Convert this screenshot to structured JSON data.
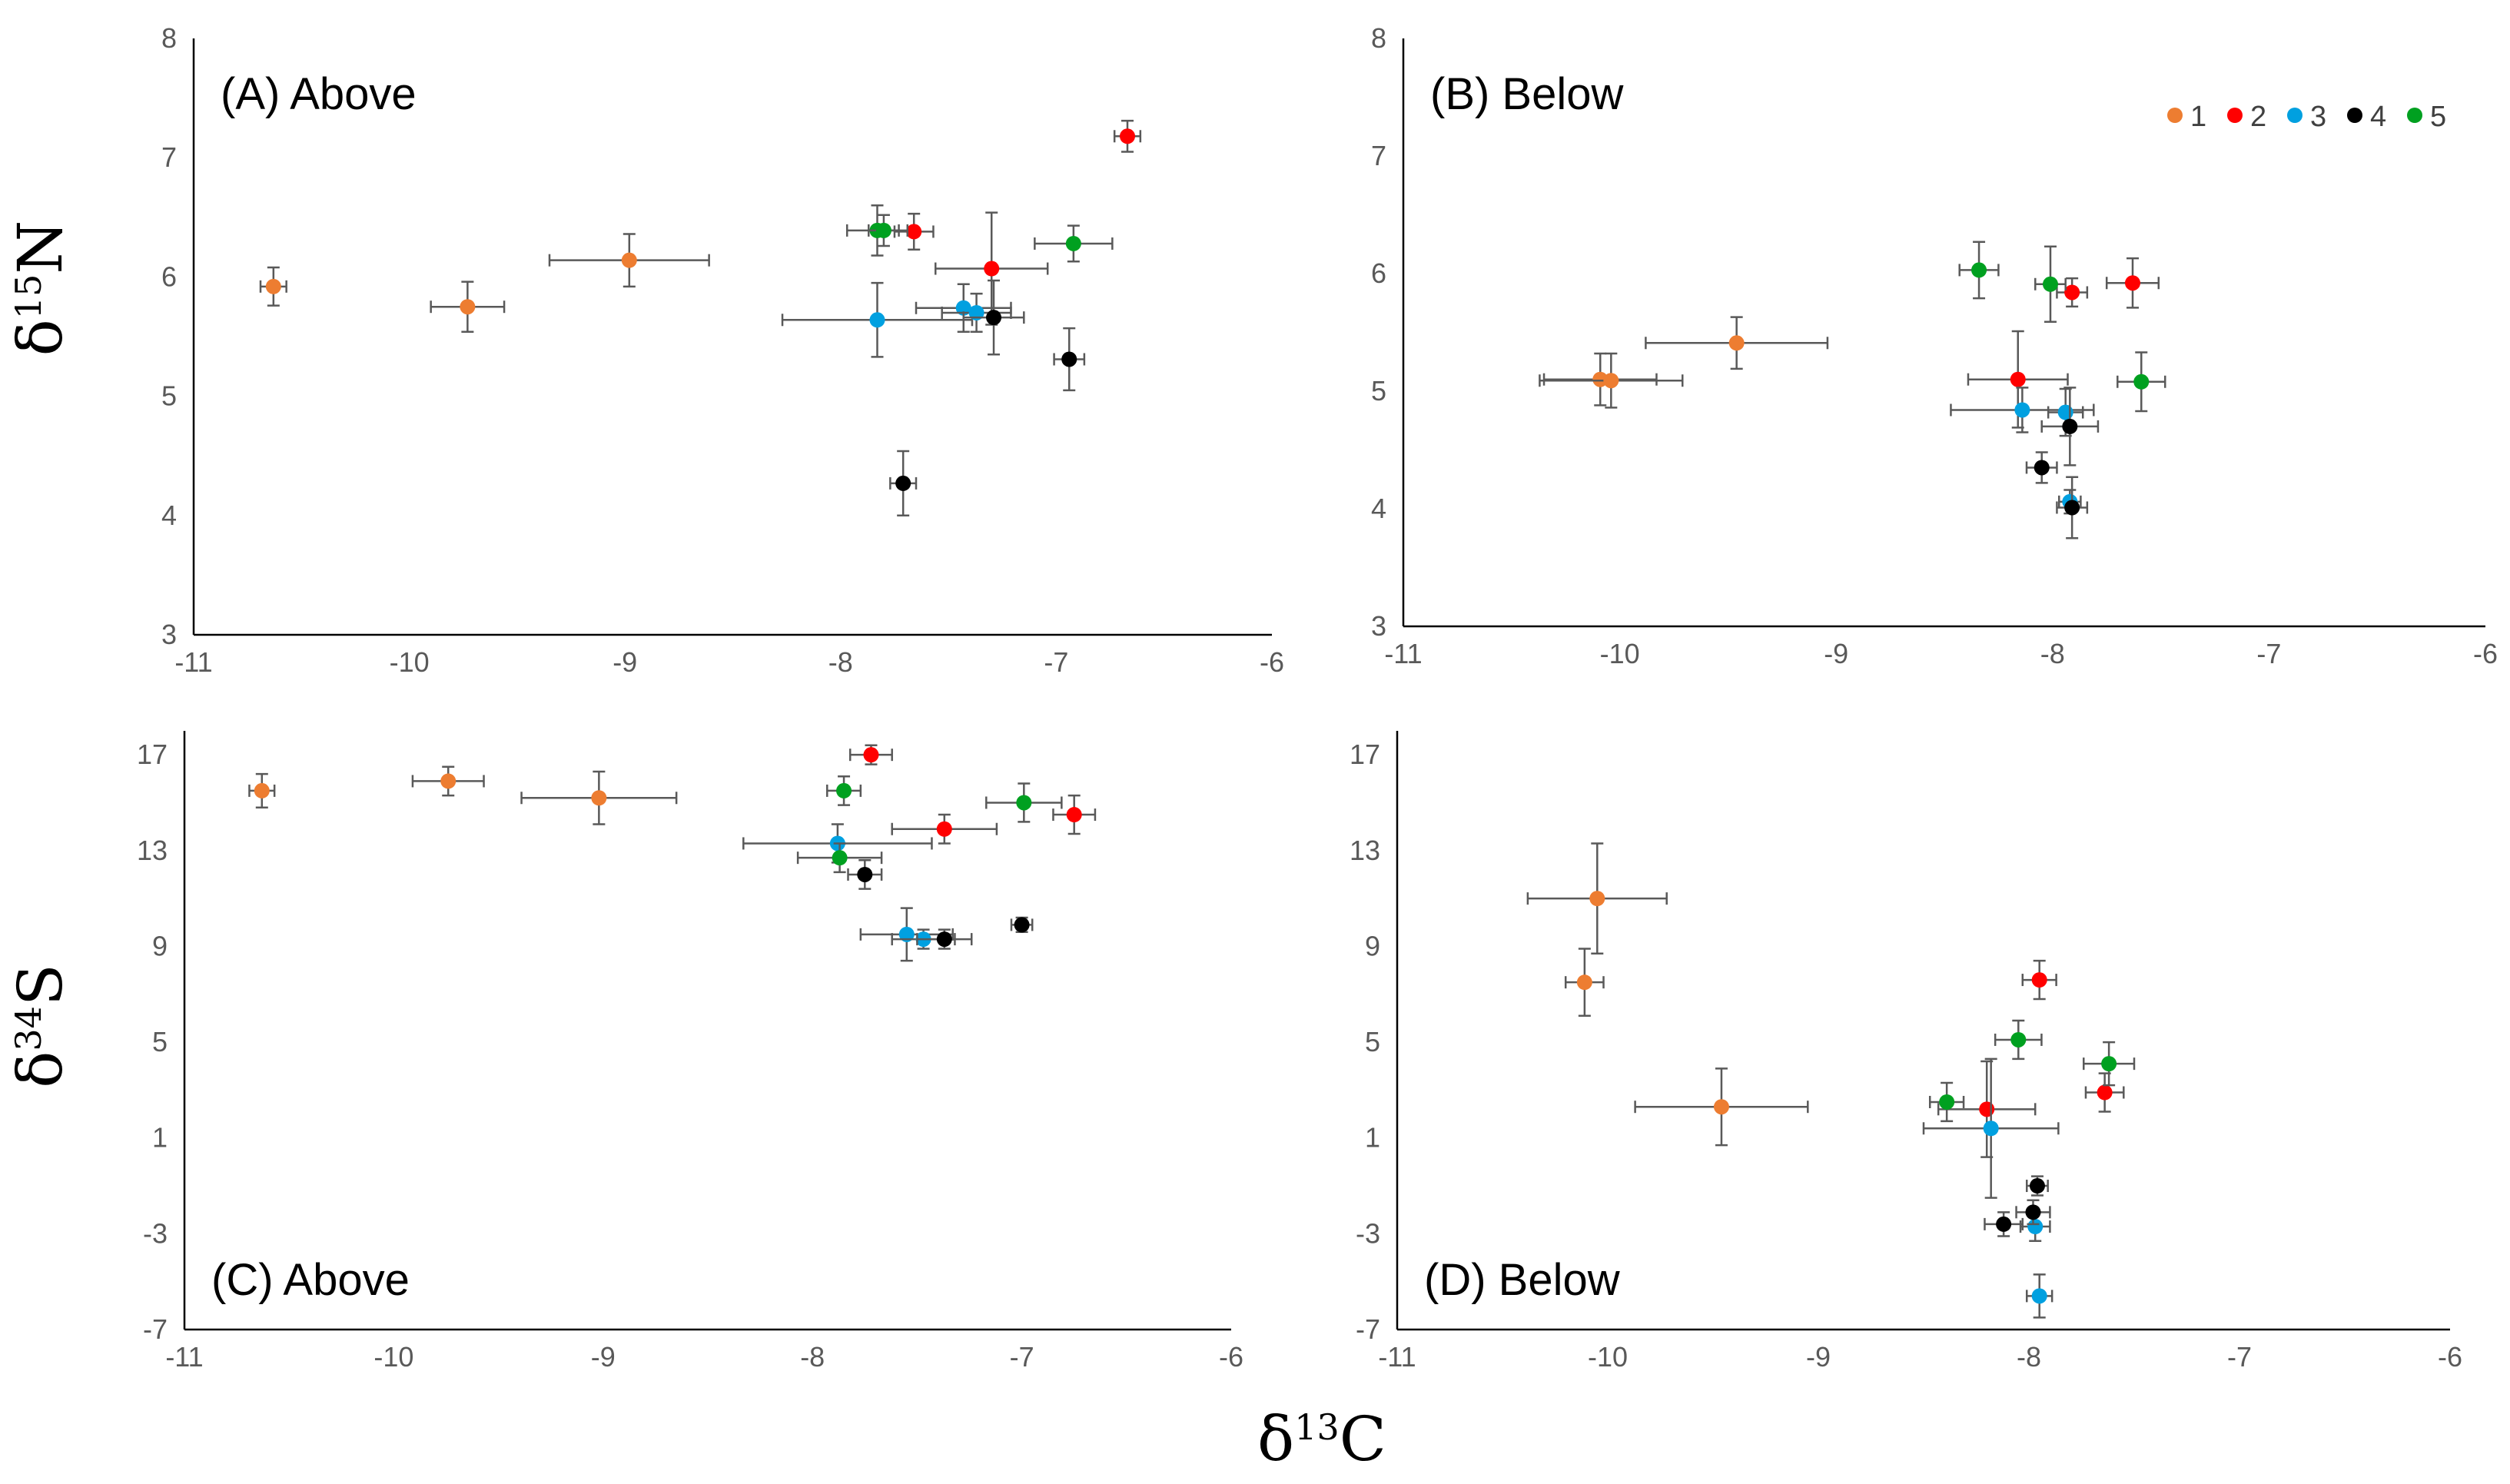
{
  "colors": {
    "1": "#ED7D31",
    "2": "#FF0000",
    "3": "#00A0E0",
    "4": "#000000",
    "5": "#00A020"
  },
  "legend": {
    "placement": "top-right",
    "items": [
      "1",
      "2",
      "3",
      "4",
      "5"
    ]
  },
  "axis_titles": {
    "x": "δ13C",
    "y_top": "δ15N",
    "y_bottom": "δ34S"
  },
  "chart_data": [
    {
      "type": "scatter",
      "title": "(A) Above",
      "xlim": [
        -11,
        -6
      ],
      "ylim": [
        3,
        8
      ],
      "xticks": [
        "-11",
        "-10",
        "-9",
        "-8",
        "-7",
        "-6"
      ],
      "yticks": [
        "3",
        "4",
        "5",
        "6",
        "7",
        "8"
      ],
      "points": [
        {
          "group": "1",
          "x": -10.63,
          "y": 5.92,
          "xerr": 0.06,
          "yerr": 0.16
        },
        {
          "group": "1",
          "x": -9.73,
          "y": 5.75,
          "xerr": 0.17,
          "yerr": 0.21
        },
        {
          "group": "1",
          "x": -8.98,
          "y": 6.14,
          "xerr": 0.37,
          "yerr": 0.22
        },
        {
          "group": "2",
          "x": -7.66,
          "y": 6.38,
          "xerr": 0.09,
          "yerr": 0.15
        },
        {
          "group": "2",
          "x": -7.3,
          "y": 6.07,
          "xerr": 0.26,
          "yerr": 0.47
        },
        {
          "group": "2",
          "x": -6.67,
          "y": 7.18,
          "xerr": 0.06,
          "yerr": 0.13
        },
        {
          "group": "3",
          "x": -7.83,
          "y": 5.64,
          "xerr": 0.44,
          "yerr": 0.31
        },
        {
          "group": "3",
          "x": -7.43,
          "y": 5.74,
          "xerr": 0.22,
          "yerr": 0.2
        },
        {
          "group": "3",
          "x": -7.37,
          "y": 5.7,
          "xerr": 0.16,
          "yerr": 0.16
        },
        {
          "group": "4",
          "x": -7.29,
          "y": 5.66,
          "xerr": 0.14,
          "yerr": 0.31
        },
        {
          "group": "4",
          "x": -6.94,
          "y": 5.31,
          "xerr": 0.07,
          "yerr": 0.26
        },
        {
          "group": "4",
          "x": -7.71,
          "y": 4.27,
          "xerr": 0.06,
          "yerr": 0.27
        },
        {
          "group": "5",
          "x": -7.83,
          "y": 6.39,
          "xerr": 0.14,
          "yerr": 0.21
        },
        {
          "group": "5",
          "x": -7.8,
          "y": 6.39,
          "xerr": 0.07,
          "yerr": 0.13
        },
        {
          "group": "5",
          "x": -6.92,
          "y": 6.28,
          "xerr": 0.18,
          "yerr": 0.15
        }
      ]
    },
    {
      "type": "scatter",
      "title": "(B) Below",
      "xlim": [
        -11,
        -6
      ],
      "ylim": [
        3,
        8
      ],
      "xticks": [
        "-11",
        "-10",
        "-9",
        "-8",
        "-7",
        "-6"
      ],
      "yticks": [
        "3",
        "4",
        "5",
        "6",
        "7",
        "8"
      ],
      "points": [
        {
          "group": "1",
          "x": -10.09,
          "y": 5.1,
          "xerr": 0.26,
          "yerr": 0.22
        },
        {
          "group": "1",
          "x": -10.04,
          "y": 5.09,
          "xerr": 0.33,
          "yerr": 0.23
        },
        {
          "group": "1",
          "x": -9.46,
          "y": 5.41,
          "xerr": 0.42,
          "yerr": 0.22
        },
        {
          "group": "2",
          "x": -7.91,
          "y": 5.84,
          "xerr": 0.07,
          "yerr": 0.12
        },
        {
          "group": "2",
          "x": -7.63,
          "y": 5.92,
          "xerr": 0.12,
          "yerr": 0.21
        },
        {
          "group": "2",
          "x": -8.16,
          "y": 5.1,
          "xerr": 0.23,
          "yerr": 0.41
        },
        {
          "group": "3",
          "x": -8.14,
          "y": 4.84,
          "xerr": 0.33,
          "yerr": 0.19
        },
        {
          "group": "3",
          "x": -7.94,
          "y": 4.82,
          "xerr": 0.08,
          "yerr": 0.2
        },
        {
          "group": "3",
          "x": -7.92,
          "y": 4.06,
          "xerr": 0.05,
          "yerr": 0.1
        },
        {
          "group": "4",
          "x": -7.92,
          "y": 4.7,
          "xerr": 0.13,
          "yerr": 0.33
        },
        {
          "group": "4",
          "x": -8.05,
          "y": 4.35,
          "xerr": 0.07,
          "yerr": 0.13
        },
        {
          "group": "4",
          "x": -7.91,
          "y": 4.01,
          "xerr": 0.07,
          "yerr": 0.26
        },
        {
          "group": "5",
          "x": -8.34,
          "y": 6.03,
          "xerr": 0.09,
          "yerr": 0.24
        },
        {
          "group": "5",
          "x": -8.01,
          "y": 5.91,
          "xerr": 0.07,
          "yerr": 0.32
        },
        {
          "group": "5",
          "x": -7.59,
          "y": 5.08,
          "xerr": 0.11,
          "yerr": 0.25
        }
      ]
    },
    {
      "type": "scatter",
      "title": "(C) Above",
      "xlim": [
        -11,
        -6
      ],
      "ylim": [
        -7,
        18
      ],
      "xticks": [
        "-11",
        "-10",
        "-9",
        "-8",
        "-7",
        "-6"
      ],
      "yticks": [
        "-7",
        "-3",
        "1",
        "5",
        "9",
        "13",
        "17"
      ],
      "points": [
        {
          "group": "1",
          "x": -10.63,
          "y": 15.5,
          "xerr": 0.06,
          "yerr": 0.7
        },
        {
          "group": "1",
          "x": -9.74,
          "y": 15.9,
          "xerr": 0.17,
          "yerr": 0.6
        },
        {
          "group": "1",
          "x": -9.02,
          "y": 15.2,
          "xerr": 0.37,
          "yerr": 1.1
        },
        {
          "group": "2",
          "x": -7.72,
          "y": 17.0,
          "xerr": 0.1,
          "yerr": 0.4
        },
        {
          "group": "2",
          "x": -7.37,
          "y": 13.9,
          "xerr": 0.25,
          "yerr": 0.6
        },
        {
          "group": "2",
          "x": -6.75,
          "y": 14.5,
          "xerr": 0.1,
          "yerr": 0.8
        },
        {
          "group": "3",
          "x": -7.88,
          "y": 13.3,
          "xerr": 0.45,
          "yerr": 0.8
        },
        {
          "group": "3",
          "x": -7.55,
          "y": 9.5,
          "xerr": 0.22,
          "yerr": 1.1
        },
        {
          "group": "3",
          "x": -7.47,
          "y": 9.3,
          "xerr": 0.15,
          "yerr": 0.4
        },
        {
          "group": "4",
          "x": -7.75,
          "y": 12.0,
          "xerr": 0.08,
          "yerr": 0.6
        },
        {
          "group": "4",
          "x": -7.37,
          "y": 9.3,
          "xerr": 0.13,
          "yerr": 0.4
        },
        {
          "group": "4",
          "x": -7.0,
          "y": 9.9,
          "xerr": 0.05,
          "yerr": 0.3
        },
        {
          "group": "5",
          "x": -7.85,
          "y": 15.5,
          "xerr": 0.08,
          "yerr": 0.6
        },
        {
          "group": "5",
          "x": -7.87,
          "y": 12.7,
          "xerr": 0.2,
          "yerr": 0.6
        },
        {
          "group": "5",
          "x": -6.99,
          "y": 15.0,
          "xerr": 0.18,
          "yerr": 0.8
        }
      ]
    },
    {
      "type": "scatter",
      "title": "(D) Below",
      "xlim": [
        -11,
        -6
      ],
      "ylim": [
        -7,
        18
      ],
      "xticks": [
        "-11",
        "-10",
        "-9",
        "-8",
        "-7",
        "-6"
      ],
      "yticks": [
        "-7",
        "-3",
        "1",
        "5",
        "9",
        "13",
        "17"
      ],
      "points": [
        {
          "group": "1",
          "x": -10.05,
          "y": 11.0,
          "xerr": 0.33,
          "yerr": 2.3
        },
        {
          "group": "1",
          "x": -10.11,
          "y": 7.5,
          "xerr": 0.09,
          "yerr": 1.4
        },
        {
          "group": "1",
          "x": -9.46,
          "y": 2.3,
          "xerr": 0.41,
          "yerr": 1.6
        },
        {
          "group": "2",
          "x": -7.95,
          "y": 7.6,
          "xerr": 0.08,
          "yerr": 0.8
        },
        {
          "group": "2",
          "x": -7.64,
          "y": 2.9,
          "xerr": 0.09,
          "yerr": 0.8
        },
        {
          "group": "2",
          "x": -8.2,
          "y": 2.2,
          "xerr": 0.23,
          "yerr": 2.0
        },
        {
          "group": "3",
          "x": -8.18,
          "y": 1.4,
          "xerr": 0.32,
          "yerr": 2.9
        },
        {
          "group": "3",
          "x": -7.97,
          "y": -2.7,
          "xerr": 0.07,
          "yerr": 0.6
        },
        {
          "group": "3",
          "x": -7.95,
          "y": -5.6,
          "xerr": 0.06,
          "yerr": 0.9
        },
        {
          "group": "4",
          "x": -7.96,
          "y": -1.0,
          "xerr": 0.05,
          "yerr": 0.4
        },
        {
          "group": "4",
          "x": -7.98,
          "y": -2.1,
          "xerr": 0.08,
          "yerr": 0.5
        },
        {
          "group": "4",
          "x": -8.12,
          "y": -2.6,
          "xerr": 0.09,
          "yerr": 0.5
        },
        {
          "group": "5",
          "x": -8.05,
          "y": 5.1,
          "xerr": 0.11,
          "yerr": 0.8
        },
        {
          "group": "5",
          "x": -7.62,
          "y": 4.1,
          "xerr": 0.12,
          "yerr": 0.9
        },
        {
          "group": "5",
          "x": -8.39,
          "y": 2.5,
          "xerr": 0.08,
          "yerr": 0.8
        }
      ]
    }
  ]
}
